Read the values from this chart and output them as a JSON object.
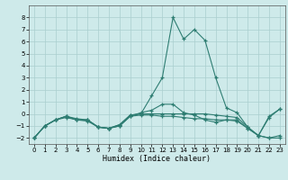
{
  "xlabel": "Humidex (Indice chaleur)",
  "xlim": [
    -0.5,
    23.5
  ],
  "ylim": [
    -2.5,
    9.0
  ],
  "yticks": [
    -2,
    -1,
    0,
    1,
    2,
    3,
    4,
    5,
    6,
    7,
    8
  ],
  "xticks": [
    0,
    1,
    2,
    3,
    4,
    5,
    6,
    7,
    8,
    9,
    10,
    11,
    12,
    13,
    14,
    15,
    16,
    17,
    18,
    19,
    20,
    21,
    22,
    23
  ],
  "background_color": "#ceeaea",
  "line_color": "#2e7d72",
  "grid_color": "#aacece",
  "lines": [
    {
      "x": [
        0,
        1,
        2,
        3,
        4,
        5,
        6,
        7,
        8,
        9,
        10,
        11,
        12,
        13,
        14,
        15,
        16,
        17,
        18,
        19,
        20,
        21,
        22,
        23
      ],
      "y": [
        -2,
        -1.0,
        -0.5,
        -0.3,
        -0.5,
        -0.6,
        -1.1,
        -1.2,
        -0.9,
        -0.1,
        0.0,
        1.5,
        3.0,
        8.0,
        6.2,
        7.0,
        6.1,
        3.0,
        0.5,
        0.1,
        -1.1,
        -1.8,
        -0.2,
        0.4
      ]
    },
    {
      "x": [
        0,
        1,
        2,
        3,
        4,
        5,
        6,
        7,
        8,
        9,
        10,
        11,
        12,
        13,
        14,
        15,
        16,
        17,
        18,
        19,
        20,
        21,
        22,
        23
      ],
      "y": [
        -2,
        -1.0,
        -0.5,
        -0.2,
        -0.4,
        -0.5,
        -1.1,
        -1.2,
        -0.9,
        -0.1,
        0.0,
        0.0,
        0.0,
        0.0,
        0.0,
        0.0,
        0.0,
        -0.1,
        -0.2,
        -0.3,
        -1.1,
        -1.8,
        -2.0,
        -2.0
      ]
    },
    {
      "x": [
        0,
        1,
        2,
        3,
        4,
        5,
        6,
        7,
        8,
        9,
        10,
        11,
        12,
        13,
        14,
        15,
        16,
        17,
        18,
        19,
        20,
        21,
        22,
        23
      ],
      "y": [
        -2,
        -1.0,
        -0.5,
        -0.2,
        -0.5,
        -0.5,
        -1.1,
        -1.2,
        -1.0,
        -0.2,
        -0.1,
        -0.1,
        -0.2,
        -0.2,
        -0.3,
        -0.4,
        -0.4,
        -0.5,
        -0.5,
        -0.6,
        -1.2,
        -1.8,
        -2.0,
        -1.8
      ]
    },
    {
      "x": [
        0,
        1,
        2,
        3,
        4,
        5,
        6,
        7,
        8,
        9,
        10,
        11,
        12,
        13,
        14,
        15,
        16,
        17,
        18,
        19,
        20,
        21,
        22,
        23
      ],
      "y": [
        -2,
        -1.0,
        -0.5,
        -0.2,
        -0.5,
        -0.5,
        -1.1,
        -1.2,
        -1.0,
        -0.2,
        0.1,
        0.3,
        0.8,
        0.8,
        0.1,
        -0.1,
        -0.5,
        -0.7,
        -0.5,
        -0.5,
        -1.2,
        -1.8,
        -0.3,
        0.4
      ]
    }
  ]
}
